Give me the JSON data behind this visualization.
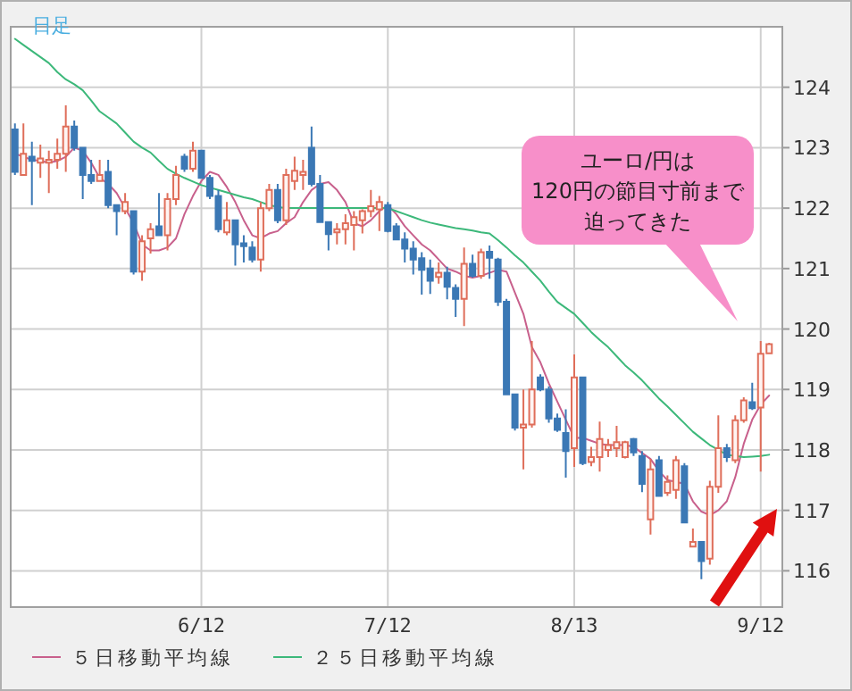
{
  "chart_data": {
    "type": "candlestick",
    "categories": [
      null,
      null,
      null,
      null,
      null,
      null,
      null,
      null,
      null,
      null,
      null,
      null,
      null,
      null,
      null,
      null,
      null,
      null,
      null,
      null,
      null,
      null,
      "6/12",
      null,
      null,
      null,
      null,
      null,
      null,
      null,
      null,
      null,
      null,
      null,
      null,
      null,
      null,
      null,
      null,
      null,
      null,
      null,
      null,
      null,
      "7/12",
      null,
      null,
      null,
      null,
      null,
      null,
      null,
      null,
      null,
      null,
      null,
      null,
      null,
      null,
      null,
      null,
      null,
      null,
      null,
      null,
      null,
      "8/13",
      null,
      null,
      null,
      null,
      null,
      null,
      null,
      null,
      null,
      null,
      null,
      null,
      null,
      null,
      null,
      null,
      null,
      null,
      null,
      null,
      null,
      "9/12",
      null
    ],
    "ohlc": [
      [
        123.3,
        123.4,
        122.55,
        122.6
      ],
      [
        122.55,
        123.4,
        122.55,
        122.9
      ],
      [
        122.85,
        123.1,
        122.05,
        122.78
      ],
      [
        122.75,
        123.05,
        122.5,
        122.82
      ],
      [
        122.75,
        122.95,
        122.25,
        122.8
      ],
      [
        122.8,
        123.15,
        122.65,
        122.9
      ],
      [
        122.9,
        123.7,
        122.6,
        123.35
      ],
      [
        123.35,
        123.45,
        122.95,
        123.0
      ],
      [
        123.0,
        123.0,
        122.15,
        122.55
      ],
      [
        122.55,
        122.8,
        122.4,
        122.45
      ],
      [
        122.45,
        122.8,
        122.45,
        122.55
      ],
      [
        122.6,
        122.8,
        122.0,
        122.05
      ],
      [
        122.05,
        122.05,
        121.55,
        121.95
      ],
      [
        121.95,
        122.25,
        121.9,
        122.1
      ],
      [
        121.95,
        121.95,
        120.9,
        120.95
      ],
      [
        120.95,
        121.55,
        120.8,
        121.45
      ],
      [
        121.5,
        121.75,
        121.25,
        121.65
      ],
      [
        121.7,
        122.25,
        121.55,
        121.55
      ],
      [
        121.55,
        122.25,
        121.3,
        122.15
      ],
      [
        122.15,
        122.7,
        122.05,
        122.55
      ],
      [
        122.85,
        122.9,
        122.6,
        122.65
      ],
      [
        122.65,
        123.1,
        122.6,
        122.95
      ],
      [
        122.95,
        122.95,
        122.5,
        122.5
      ],
      [
        122.5,
        122.55,
        122.15,
        122.2
      ],
      [
        122.2,
        122.3,
        121.6,
        121.65
      ],
      [
        121.6,
        122.1,
        121.55,
        121.8
      ],
      [
        121.8,
        121.8,
        121.05,
        121.4
      ],
      [
        121.42,
        121.55,
        121.1,
        121.37
      ],
      [
        121.35,
        121.45,
        121.1,
        121.15
      ],
      [
        121.15,
        122.1,
        120.95,
        122.0
      ],
      [
        122.0,
        122.4,
        121.95,
        122.3
      ],
      [
        122.3,
        122.4,
        121.75,
        121.8
      ],
      [
        121.8,
        122.65,
        121.72,
        122.55
      ],
      [
        122.45,
        122.85,
        122.3,
        122.62
      ],
      [
        122.55,
        122.8,
        122.3,
        122.6
      ],
      [
        123.0,
        123.35,
        122.36,
        122.4
      ],
      [
        122.4,
        122.55,
        121.77,
        121.77
      ],
      [
        121.77,
        121.77,
        121.3,
        121.57
      ],
      [
        121.6,
        121.75,
        121.4,
        121.65
      ],
      [
        121.65,
        121.9,
        121.4,
        121.75
      ],
      [
        121.72,
        121.95,
        121.3,
        121.85
      ],
      [
        121.8,
        121.98,
        121.58,
        121.95
      ],
      [
        121.95,
        122.3,
        121.85,
        122.03
      ],
      [
        121.98,
        122.2,
        121.62,
        122.1
      ],
      [
        122.05,
        122.1,
        121.6,
        121.62
      ],
      [
        121.7,
        121.75,
        121.47,
        121.48
      ],
      [
        121.48,
        121.6,
        121.1,
        121.33
      ],
      [
        121.33,
        121.45,
        120.9,
        121.15
      ],
      [
        121.17,
        121.27,
        120.57,
        120.98
      ],
      [
        121.0,
        121.15,
        120.58,
        120.8
      ],
      [
        120.86,
        121.1,
        120.75,
        120.93
      ],
      [
        120.93,
        121.03,
        120.49,
        120.7
      ],
      [
        120.68,
        120.74,
        120.2,
        120.5
      ],
      [
        120.5,
        121.35,
        120.05,
        121.08
      ],
      [
        121.08,
        121.23,
        120.85,
        120.88
      ],
      [
        120.88,
        121.33,
        120.83,
        121.27
      ],
      [
        121.28,
        121.38,
        120.83,
        121.18
      ],
      [
        121.15,
        121.18,
        120.38,
        120.45
      ],
      [
        120.45,
        120.5,
        118.92,
        118.92
      ],
      [
        118.92,
        118.92,
        118.32,
        118.37
      ],
      [
        118.37,
        119.0,
        117.68,
        118.42
      ],
      [
        118.42,
        119.8,
        118.37,
        119.0
      ],
      [
        119.2,
        119.25,
        118.97,
        119.0
      ],
      [
        119.0,
        119.05,
        118.45,
        118.52
      ],
      [
        118.52,
        118.6,
        118.3,
        118.33
      ],
      [
        118.28,
        118.67,
        117.54,
        117.98
      ],
      [
        118.03,
        119.58,
        117.72,
        119.2
      ],
      [
        119.2,
        119.2,
        117.75,
        117.78
      ],
      [
        117.8,
        118.05,
        117.73,
        117.88
      ],
      [
        117.88,
        118.47,
        117.64,
        118.18
      ],
      [
        118.0,
        118.18,
        117.88,
        118.08
      ],
      [
        118.03,
        118.4,
        117.88,
        118.13
      ],
      [
        117.88,
        118.15,
        117.86,
        118.13
      ],
      [
        118.18,
        118.2,
        117.9,
        117.96
      ],
      [
        117.9,
        117.98,
        117.3,
        117.44
      ],
      [
        116.85,
        117.85,
        116.6,
        117.68
      ],
      [
        117.83,
        117.9,
        117.24,
        117.24
      ],
      [
        117.29,
        117.58,
        117.24,
        117.47
      ],
      [
        117.34,
        117.9,
        117.19,
        117.83
      ],
      [
        117.73,
        117.78,
        116.8,
        116.8
      ],
      [
        116.4,
        116.7,
        116.4,
        116.48
      ],
      [
        116.48,
        116.48,
        115.86,
        116.16
      ],
      [
        116.2,
        117.49,
        116.1,
        117.39
      ],
      [
        117.39,
        118.57,
        117.29,
        118.03
      ],
      [
        118.03,
        118.1,
        117.8,
        117.88
      ],
      [
        117.83,
        118.57,
        117.78,
        118.49
      ],
      [
        118.49,
        118.87,
        118.45,
        118.82
      ],
      [
        118.79,
        119.11,
        118.66,
        118.69
      ],
      [
        118.7,
        119.8,
        117.64,
        119.59
      ],
      [
        119.6,
        119.77,
        119.6,
        119.75
      ]
    ],
    "series": [
      {
        "type": "line",
        "name": "５日移動平均線",
        "color": "#c8608c",
        "values": [
          122.9,
          122.85,
          122.8,
          122.78,
          122.75,
          122.78,
          122.85,
          123.0,
          122.95,
          122.75,
          122.5,
          122.4,
          122.25,
          122.0,
          121.75,
          121.4,
          121.3,
          121.3,
          121.35,
          121.5,
          121.9,
          122.2,
          122.45,
          122.6,
          122.55,
          122.35,
          122.1,
          121.8,
          121.55,
          121.5,
          121.58,
          121.62,
          121.75,
          121.85,
          122.1,
          122.3,
          122.4,
          122.43,
          122.3,
          122.1,
          121.75,
          121.7,
          121.8,
          121.95,
          122.05,
          121.9,
          121.7,
          121.55,
          121.4,
          121.3,
          121.15,
          121.0,
          120.95,
          120.88,
          120.85,
          120.88,
          120.93,
          120.98,
          120.95,
          120.6,
          120.25,
          119.7,
          119.45,
          119.1,
          118.8,
          118.5,
          118.2,
          118.2,
          118.15,
          118.1,
          118.08,
          118.08,
          118.08,
          118.05,
          117.95,
          117.85,
          117.65,
          117.5,
          117.47,
          117.44,
          117.15,
          116.98,
          116.92,
          117.0,
          117.15,
          117.55,
          118.1,
          118.5,
          118.75,
          118.9
        ]
      },
      {
        "type": "line",
        "name": "２５日移動平均線",
        "color": "#3cb87a",
        "values": [
          124.8,
          124.7,
          124.6,
          124.5,
          124.4,
          124.25,
          124.13,
          124.05,
          123.95,
          123.78,
          123.6,
          123.5,
          123.4,
          123.25,
          123.1,
          123.0,
          122.92,
          122.78,
          122.65,
          122.57,
          122.5,
          122.44,
          122.38,
          122.34,
          122.3,
          122.26,
          122.22,
          122.18,
          122.15,
          122.1,
          122.05,
          122.02,
          122.0,
          122.0,
          122.0,
          122.0,
          122.0,
          122.0,
          122.0,
          122.0,
          122.0,
          122.0,
          122.0,
          122.0,
          122.0,
          121.95,
          121.9,
          121.85,
          121.8,
          121.76,
          121.73,
          121.7,
          121.67,
          121.65,
          121.63,
          121.6,
          121.58,
          121.47,
          121.35,
          121.22,
          121.1,
          120.95,
          120.8,
          120.62,
          120.45,
          120.35,
          120.25,
          120.1,
          119.95,
          119.82,
          119.7,
          119.55,
          119.4,
          119.28,
          119.15,
          119.0,
          118.85,
          118.72,
          118.58,
          118.44,
          118.3,
          118.19,
          118.08,
          118.0,
          117.92,
          117.9,
          117.88,
          117.89,
          117.9,
          117.92
        ]
      }
    ],
    "ylim": [
      115.4,
      125.0
    ],
    "yticks": [
      116,
      117,
      118,
      119,
      120,
      121,
      122,
      123,
      124
    ],
    "grid": true,
    "legend": "bottom",
    "annotations": [
      "日足",
      "ユーロ/円は",
      "120円の節目寸前まで",
      "迫ってきた"
    ]
  }
}
